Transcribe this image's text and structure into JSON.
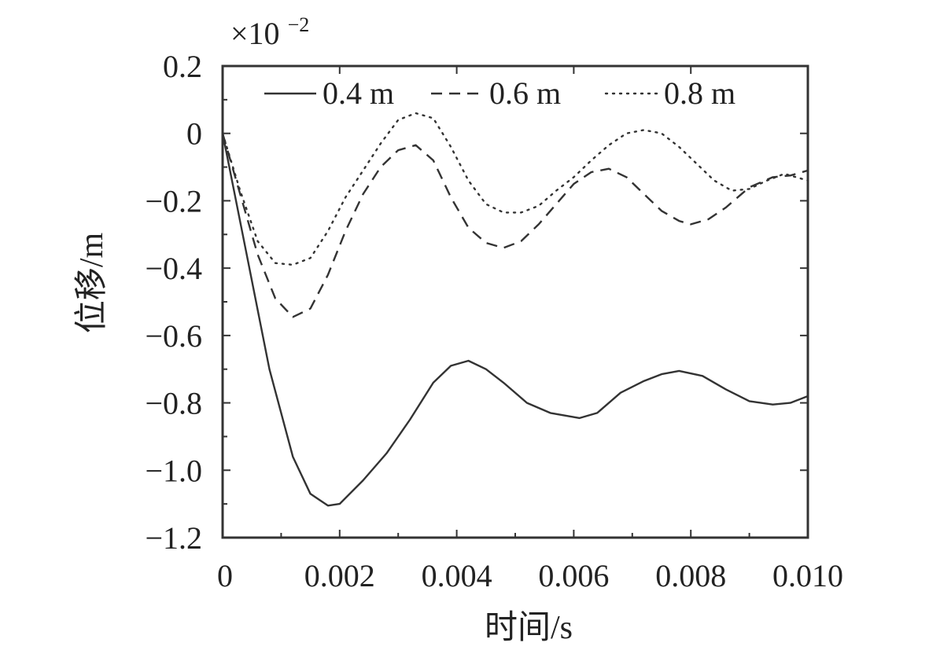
{
  "chart_data": {
    "type": "line",
    "title": "",
    "xlabel": "时间/s",
    "ylabel": "位移/m",
    "scale_label": "×10",
    "scale_exponent": "−2",
    "xlim": [
      0,
      0.01
    ],
    "ylim": [
      -1.2,
      0.2
    ],
    "x_ticks": [
      0,
      0.002,
      0.004,
      0.006,
      0.008,
      0.01
    ],
    "x_tick_labels": [
      "0",
      "0.002",
      "0.004",
      "0.006",
      "0.008",
      "0.010"
    ],
    "y_ticks": [
      0.2,
      0,
      -0.2,
      -0.4,
      -0.6,
      -0.8,
      -1.0,
      -1.2
    ],
    "y_tick_labels": [
      "0.2",
      "0",
      "−0.2",
      "−0.4",
      "−0.6",
      "−0.8",
      "−1.0",
      "−1.2"
    ],
    "grid": false,
    "legend_position": "top",
    "series": [
      {
        "name": "0.4 m",
        "style": "solid",
        "color": "#333333",
        "x": [
          0,
          0.0004,
          0.0008,
          0.0012,
          0.0015,
          0.0018,
          0.002,
          0.0024,
          0.0028,
          0.0032,
          0.0036,
          0.0039,
          0.0042,
          0.0045,
          0.0048,
          0.0052,
          0.0056,
          0.0061,
          0.0064,
          0.0068,
          0.0072,
          0.0075,
          0.0078,
          0.0082,
          0.0086,
          0.009,
          0.0094,
          0.0097,
          0.01
        ],
        "y": [
          0,
          -0.35,
          -0.7,
          -0.96,
          -1.07,
          -1.105,
          -1.1,
          -1.03,
          -0.95,
          -0.85,
          -0.74,
          -0.69,
          -0.675,
          -0.7,
          -0.74,
          -0.8,
          -0.83,
          -0.845,
          -0.83,
          -0.77,
          -0.735,
          -0.715,
          -0.705,
          -0.72,
          -0.76,
          -0.795,
          -0.805,
          -0.8,
          -0.78
        ]
      },
      {
        "name": "0.6 m",
        "style": "dashed",
        "color": "#333333",
        "x": [
          0,
          0.0003,
          0.0006,
          0.0009,
          0.0012,
          0.0015,
          0.0018,
          0.0021,
          0.0024,
          0.0027,
          0.003,
          0.0033,
          0.0036,
          0.0039,
          0.0042,
          0.0045,
          0.0048,
          0.0051,
          0.0054,
          0.0057,
          0.006,
          0.0063,
          0.0066,
          0.0069,
          0.0072,
          0.0075,
          0.0078,
          0.008,
          0.0083,
          0.0086,
          0.009,
          0.0094,
          0.0097,
          0.01
        ],
        "y": [
          0,
          -0.18,
          -0.36,
          -0.49,
          -0.545,
          -0.52,
          -0.42,
          -0.29,
          -0.18,
          -0.1,
          -0.05,
          -0.035,
          -0.08,
          -0.19,
          -0.28,
          -0.325,
          -0.34,
          -0.32,
          -0.27,
          -0.21,
          -0.15,
          -0.115,
          -0.105,
          -0.13,
          -0.18,
          -0.23,
          -0.26,
          -0.27,
          -0.255,
          -0.22,
          -0.16,
          -0.13,
          -0.125,
          -0.11
        ]
      },
      {
        "name": "0.8 m",
        "style": "dotted",
        "color": "#333333",
        "x": [
          0,
          0.0003,
          0.0006,
          0.0009,
          0.0012,
          0.0015,
          0.0018,
          0.0021,
          0.0024,
          0.0027,
          0.003,
          0.0033,
          0.0036,
          0.0039,
          0.0042,
          0.0045,
          0.0048,
          0.0051,
          0.0054,
          0.0057,
          0.006,
          0.0063,
          0.0066,
          0.0069,
          0.0072,
          0.0075,
          0.0078,
          0.0081,
          0.0084,
          0.0087,
          0.009,
          0.0093,
          0.0096,
          0.01
        ],
        "y": [
          0,
          -0.17,
          -0.32,
          -0.385,
          -0.39,
          -0.37,
          -0.29,
          -0.19,
          -0.11,
          -0.03,
          0.04,
          0.06,
          0.045,
          -0.04,
          -0.14,
          -0.21,
          -0.235,
          -0.235,
          -0.215,
          -0.17,
          -0.13,
          -0.08,
          -0.035,
          0.0,
          0.01,
          0.0,
          -0.04,
          -0.09,
          -0.14,
          -0.17,
          -0.165,
          -0.14,
          -0.12,
          -0.14
        ]
      }
    ]
  }
}
